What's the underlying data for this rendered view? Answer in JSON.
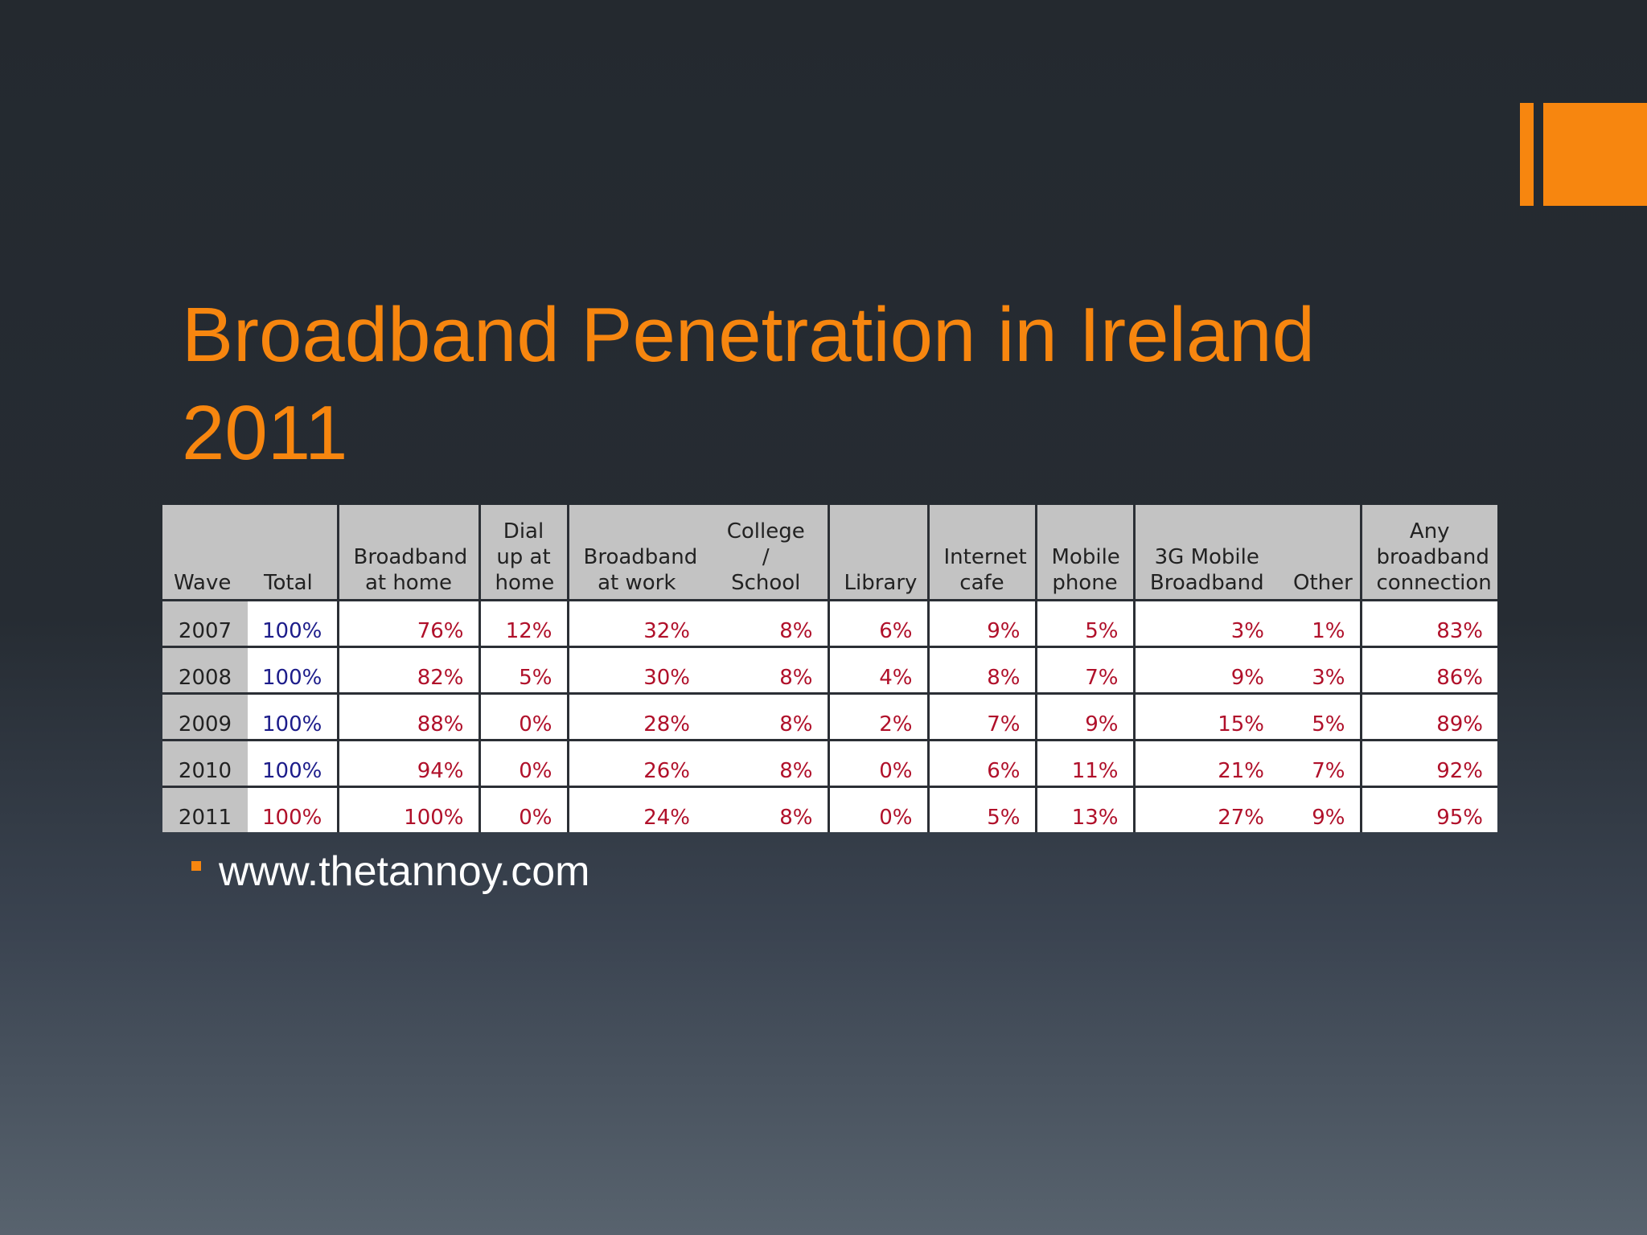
{
  "slide": {
    "title_line1": "Broadband Penetration in Ireland",
    "title_line2": "2011",
    "bullet": "www.thetannoy.com",
    "accent_color": "#f7860f"
  },
  "table": {
    "headers": [
      [
        "Wave"
      ],
      [
        "Total"
      ],
      [
        "Broadband",
        "at home"
      ],
      [
        "Dial",
        "up at",
        "home"
      ],
      [
        "Broadband",
        "at work"
      ],
      [
        "College",
        "/",
        "School"
      ],
      [
        "Library"
      ],
      [
        "Internet",
        "cafe"
      ],
      [
        "Mobile",
        "phone"
      ],
      [
        "3G Mobile",
        "Broadband"
      ],
      [
        "Other"
      ],
      [
        "Any",
        "broadband",
        "connection"
      ]
    ],
    "rows": [
      [
        "2007",
        "100%",
        "76%",
        "12%",
        "32%",
        "8%",
        "6%",
        "9%",
        "5%",
        "3%",
        "1%",
        "83%"
      ],
      [
        "2008",
        "100%",
        "82%",
        "5%",
        "30%",
        "8%",
        "4%",
        "8%",
        "7%",
        "9%",
        "3%",
        "86%"
      ],
      [
        "2009",
        "100%",
        "88%",
        "0%",
        "28%",
        "8%",
        "2%",
        "7%",
        "9%",
        "15%",
        "5%",
        "89%"
      ],
      [
        "2010",
        "100%",
        "94%",
        "0%",
        "26%",
        "8%",
        "0%",
        "6%",
        "11%",
        "21%",
        "7%",
        "92%"
      ],
      [
        "2011",
        "100%",
        "100%",
        "0%",
        "24%",
        "8%",
        "0%",
        "5%",
        "13%",
        "27%",
        "9%",
        "95%"
      ]
    ]
  }
}
